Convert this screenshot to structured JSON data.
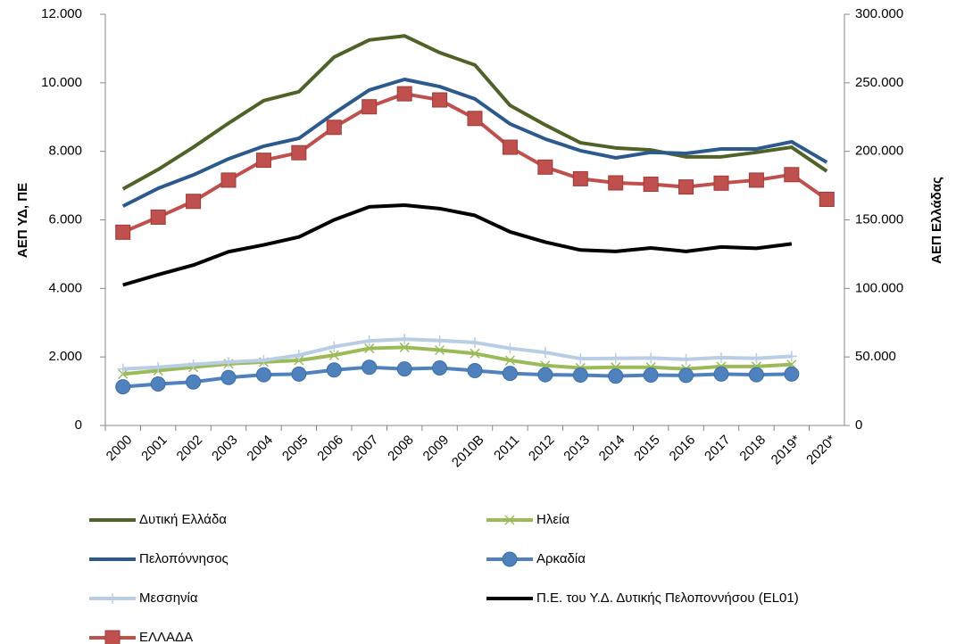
{
  "chart_data": {
    "type": "line",
    "categories": [
      "2000",
      "2001",
      "2002",
      "2003",
      "2004",
      "2005",
      "2006",
      "2007",
      "2008",
      "2009",
      "2010Β",
      "2011",
      "2012",
      "2013",
      "2014",
      "2015",
      "2016",
      "2017",
      "2018",
      "2019*",
      "2020*"
    ],
    "y_label": "ΑΕΠ ΥΔ, ΠΕ",
    "y2_label": "ΑΕΠ Ελλάδας",
    "ylim": [
      0,
      12000
    ],
    "yticks": [
      0,
      {
        "value": 2000,
        "label": "2.000"
      },
      {
        "value": 4000,
        "label": "4.000"
      },
      {
        "value": 6000,
        "label": "6.000"
      },
      {
        "value": 8000,
        "label": "8.000"
      },
      {
        "value": 10000,
        "label": "10.000"
      },
      {
        "value": 12000,
        "label": "12.000"
      }
    ],
    "y2lim": [
      0,
      300000
    ],
    "y2ticks": [
      0,
      {
        "value": 50000,
        "label": "50.000"
      },
      {
        "value": 100000,
        "label": "100.000"
      },
      {
        "value": 150000,
        "label": "150.000"
      },
      {
        "value": 200000,
        "label": "200.000"
      },
      {
        "value": 250000,
        "label": "250.000"
      },
      {
        "value": 300000,
        "label": "300.000"
      }
    ],
    "grid": false,
    "legend": "bottom",
    "series": [
      {
        "name": "Δυτική Ελλάδα",
        "color": "#4f6228",
        "marker": "none",
        "values": [
          6900,
          7470,
          8120,
          8820,
          9480,
          9740,
          10750,
          11250,
          11370,
          10880,
          10520,
          9340,
          8770,
          8250,
          8100,
          8040,
          7840,
          7840,
          7970,
          8120,
          7420
        ]
      },
      {
        "name": "Ηλεία",
        "color": "#9bbb59",
        "marker": "x",
        "values": [
          1500,
          1600,
          1700,
          1800,
          1850,
          1900,
          2050,
          2250,
          2280,
          2200,
          2100,
          1900,
          1750,
          1680,
          1700,
          1700,
          1650,
          1720,
          1720,
          1780,
          null
        ]
      },
      {
        "name": "Πελοπόννησος",
        "color": "#2c5a8e",
        "marker": "none",
        "values": [
          6400,
          6920,
          7310,
          7780,
          8150,
          8380,
          9110,
          9790,
          10100,
          9890,
          9530,
          8800,
          8360,
          8020,
          7810,
          7970,
          7940,
          8070,
          8070,
          8280,
          7680
        ]
      },
      {
        "name": "Αρκαδία",
        "color": "#4f81bd",
        "marker": "circle",
        "values": [
          1130,
          1210,
          1270,
          1400,
          1480,
          1500,
          1620,
          1700,
          1650,
          1680,
          1600,
          1520,
          1480,
          1470,
          1440,
          1470,
          1460,
          1500,
          1480,
          1500,
          null
        ]
      },
      {
        "name": "Μεσσηνία",
        "color": "#b9cde5",
        "marker": "plus",
        "values": [
          1650,
          1700,
          1780,
          1850,
          1900,
          2050,
          2300,
          2470,
          2520,
          2480,
          2420,
          2250,
          2130,
          1950,
          1960,
          1970,
          1930,
          1980,
          1960,
          2020,
          null
        ]
      },
      {
        "name": "Π.Ε. του  Υ.Δ. Δυτικής Πελοποννήσου (EL01)",
        "color": "#000000",
        "marker": "none",
        "values": [
          4100,
          4400,
          4680,
          5070,
          5270,
          5500,
          6000,
          6380,
          6430,
          6330,
          6130,
          5650,
          5350,
          5120,
          5080,
          5180,
          5080,
          5210,
          5170,
          5300,
          null
        ]
      },
      {
        "name": "ΕΛΛΑΔΑ",
        "color": "#c0504d",
        "marker": "square",
        "axis": "y2",
        "values": [
          141000,
          152000,
          163500,
          179000,
          193500,
          199000,
          217500,
          232500,
          242000,
          237500,
          224000,
          203000,
          188500,
          180000,
          177000,
          176000,
          174000,
          176800,
          179000,
          183000,
          165000
        ]
      }
    ]
  }
}
